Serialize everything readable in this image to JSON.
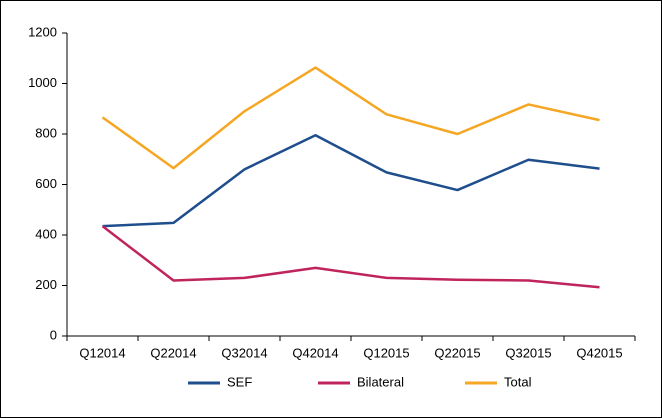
{
  "chart_data": {
    "type": "line",
    "categories": [
      "Q12014",
      "Q22014",
      "Q32014",
      "Q42014",
      "Q12015",
      "Q22015",
      "Q32015",
      "Q42015"
    ],
    "series": [
      {
        "name": "SEF",
        "color": "#1f4e8c",
        "values": [
          435,
          448,
          660,
          795,
          648,
          578,
          698,
          663
        ]
      },
      {
        "name": "Bilateral",
        "color": "#c0245c",
        "values": [
          435,
          220,
          230,
          270,
          230,
          223,
          220,
          193
        ]
      },
      {
        "name": "Total",
        "color": "#f5a623",
        "values": [
          866,
          665,
          890,
          1063,
          878,
          800,
          917,
          855
        ]
      }
    ],
    "ylim": [
      0,
      1200
    ],
    "yticks": [
      0,
      200,
      400,
      600,
      800,
      1000,
      1200
    ],
    "legend": "bottom"
  }
}
